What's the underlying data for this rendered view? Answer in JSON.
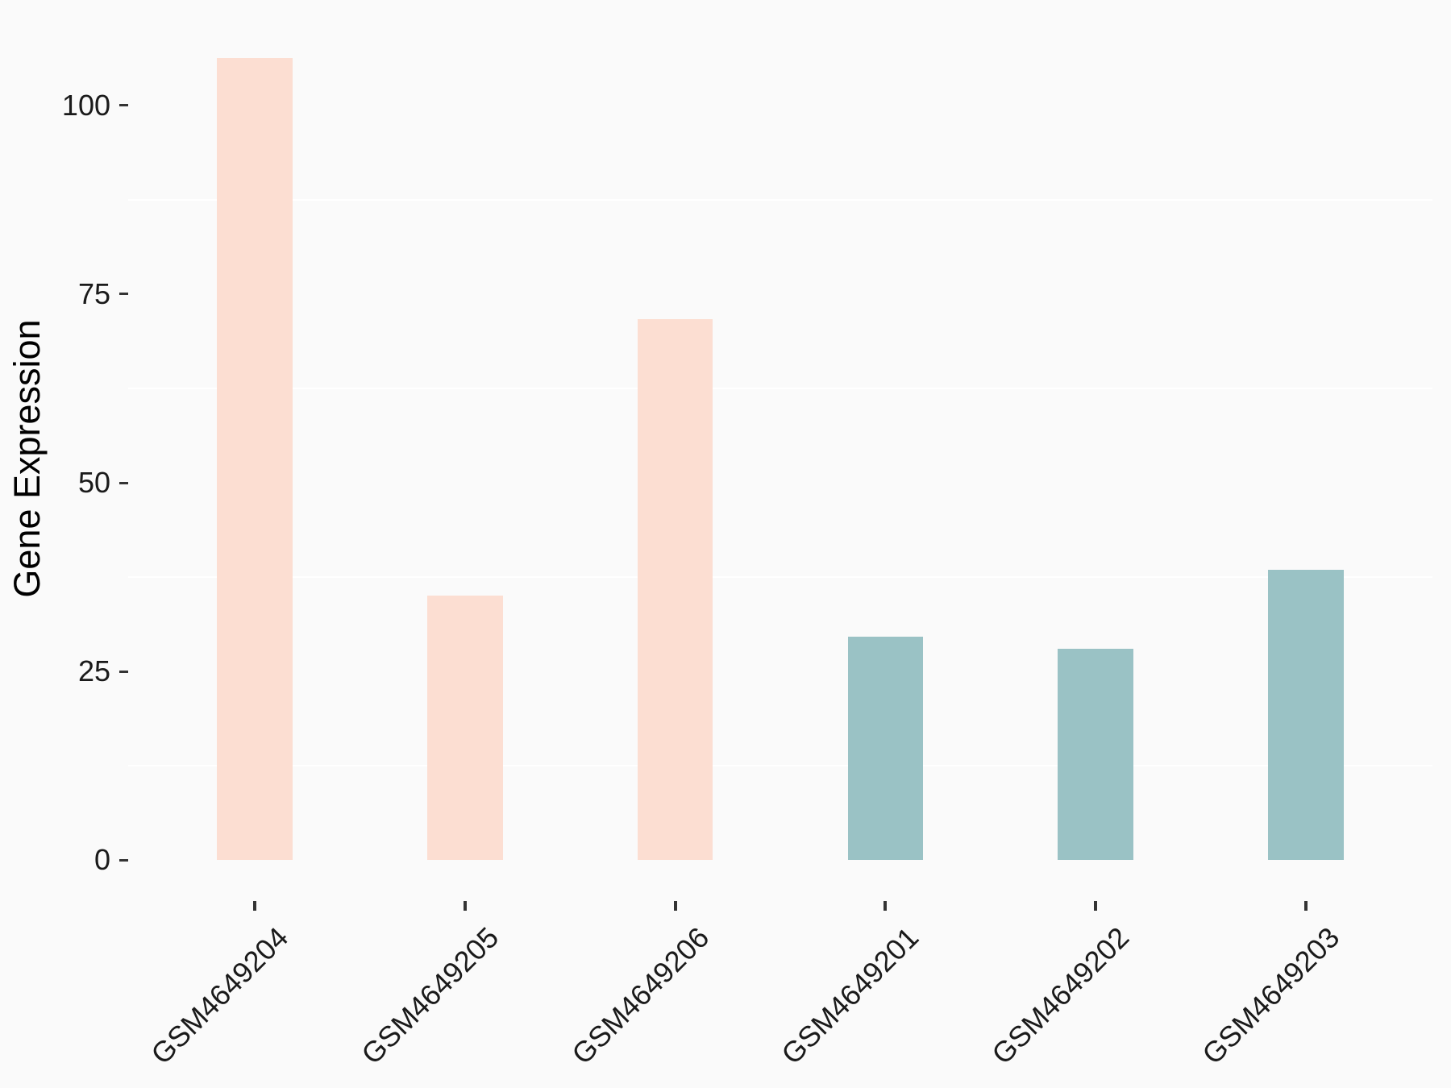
{
  "figure": {
    "background": "#FAFAFA",
    "title": ""
  },
  "chart_data": {
    "type": "bar",
    "title": "",
    "xlabel": "",
    "ylabel": "Gene Expression",
    "categories": [
      "GSM4649204",
      "GSM4649205",
      "GSM4649206",
      "GSM4649201",
      "GSM4649202",
      "GSM4649203"
    ],
    "values": [
      106.3,
      35.1,
      71.7,
      29.6,
      28.0,
      38.5
    ],
    "bar_colors": [
      "#FCDED2",
      "#FCDED2",
      "#FCDED2",
      "#9AC2C5",
      "#9AC2C5",
      "#9AC2C5"
    ],
    "group_colors": {
      "pink": "#FCDED2",
      "teal": "#9AC2C5"
    },
    "yticks": [
      0,
      25,
      50,
      75,
      100
    ],
    "minor_gridlines": [
      12.5,
      37.5,
      62.5,
      87.5
    ],
    "ylim": [
      -5.3,
      111.6
    ],
    "xlim": [
      0.4,
      6.6
    ],
    "bar_width_units": 0.36,
    "x_tick_angle": -45,
    "grid": "minor-only",
    "grid_color": "#FFFFFF",
    "tick_color": "#333333",
    "text_color": "#1A1A1A",
    "legend_position": "none"
  }
}
